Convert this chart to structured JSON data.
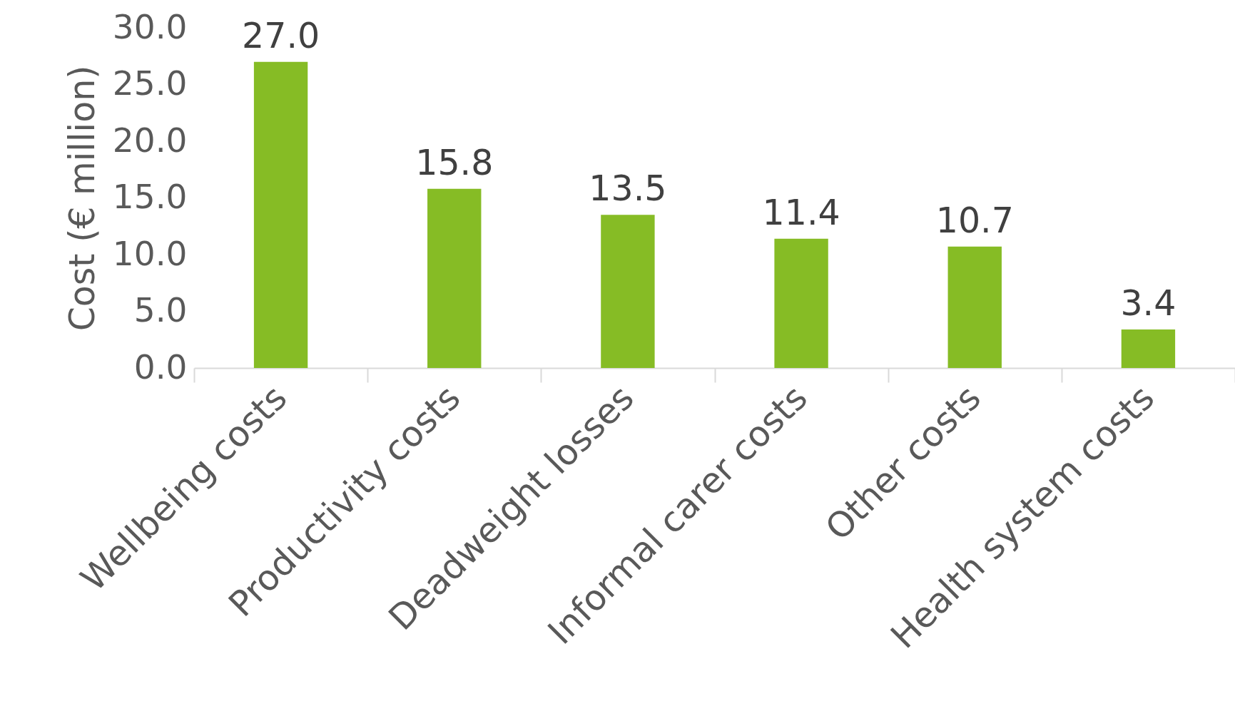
{
  "chart_data": {
    "type": "bar",
    "ylabel": "Cost (€ million)",
    "categories": [
      "Wellbeing costs",
      "Productivity costs",
      "Deadweight losses",
      "Informal carer costs",
      "Other costs",
      "Health system costs"
    ],
    "values": [
      27.0,
      15.8,
      13.5,
      11.4,
      10.7,
      3.4
    ],
    "value_labels": [
      "27.0",
      "15.8",
      "13.5",
      "11.4",
      "10.7",
      "3.4"
    ],
    "color": "#86bc25",
    "ylim": [
      0,
      30
    ],
    "yticks": [
      {
        "value": 0,
        "label": "0.0"
      },
      {
        "value": 5,
        "label": "5.0"
      },
      {
        "value": 10,
        "label": "10.0"
      },
      {
        "value": 15,
        "label": "15.0"
      },
      {
        "value": 20,
        "label": "20.0"
      },
      {
        "value": 25,
        "label": "25.0"
      },
      {
        "value": 30,
        "label": "30.0"
      }
    ],
    "grid": false
  }
}
